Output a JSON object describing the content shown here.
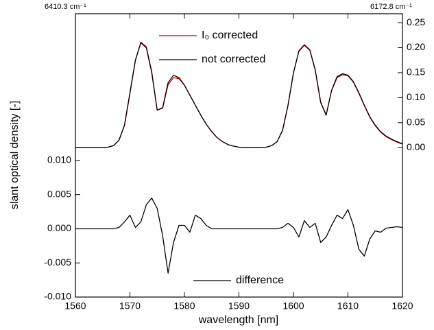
{
  "chart_data": {
    "type": "line",
    "x_label": "wavelength [nm]",
    "y_label": "slant optical density [-]",
    "annotations": [
      "6410.3 cm⁻¹",
      "6172.8 cm⁻¹"
    ],
    "x": [
      1560,
      1561,
      1562,
      1563,
      1564,
      1565,
      1566,
      1567,
      1568,
      1569,
      1570,
      1571,
      1572,
      1573,
      1574,
      1575,
      1576,
      1577,
      1578,
      1579,
      1580,
      1581,
      1582,
      1583,
      1584,
      1585,
      1586,
      1587,
      1588,
      1589,
      1590,
      1591,
      1592,
      1593,
      1594,
      1595,
      1596,
      1597,
      1598,
      1599,
      1600,
      1601,
      1602,
      1603,
      1604,
      1605,
      1606,
      1607,
      1608,
      1609,
      1610,
      1611,
      1612,
      1613,
      1614,
      1615,
      1616,
      1617,
      1618,
      1619,
      1620
    ],
    "series": [
      {
        "name": "I₀ corrected",
        "color": "#c00000",
        "axis": "y2",
        "values": [
          0,
          0,
          0,
          0,
          0,
          0,
          0.001,
          0.004,
          0.015,
          0.044,
          0.108,
          0.174,
          0.211,
          0.202,
          0.152,
          0.075,
          0.079,
          0.126,
          0.14,
          0.138,
          0.125,
          0.105,
          0.085,
          0.065,
          0.047,
          0.032,
          0.02,
          0.012,
          0.006,
          0.003,
          0.001,
          0,
          0,
          0,
          0,
          0.001,
          0.004,
          0.012,
          0.034,
          0.084,
          0.149,
          0.194,
          0.206,
          0.196,
          0.156,
          0.091,
          0.066,
          0.114,
          0.14,
          0.146,
          0.144,
          0.131,
          0.109,
          0.084,
          0.061,
          0.044,
          0.031,
          0.022,
          0.016,
          0.011,
          0.007
        ]
      },
      {
        "name": "not corrected",
        "color": "#000000",
        "axis": "y2",
        "values": [
          0,
          0,
          0,
          0,
          0,
          0,
          0.001,
          0.004,
          0.015,
          0.045,
          0.11,
          0.175,
          0.21,
          0.2,
          0.15,
          0.075,
          0.08,
          0.13,
          0.145,
          0.14,
          0.125,
          0.105,
          0.085,
          0.065,
          0.047,
          0.032,
          0.02,
          0.012,
          0.006,
          0.003,
          0.001,
          0,
          0,
          0,
          0,
          0.001,
          0.004,
          0.012,
          0.035,
          0.085,
          0.15,
          0.193,
          0.205,
          0.195,
          0.155,
          0.09,
          0.065,
          0.115,
          0.142,
          0.148,
          0.145,
          0.132,
          0.11,
          0.085,
          0.062,
          0.045,
          0.032,
          0.023,
          0.017,
          0.012,
          0.008
        ]
      },
      {
        "name": "difference",
        "color": "#000000",
        "values": [
          0,
          0,
          0,
          0,
          0,
          0,
          0,
          0,
          0.0002,
          0.001,
          0.002,
          0.0002,
          0.001,
          0.0035,
          0.0045,
          0.003,
          -0.001,
          -0.0065,
          -0.002,
          0.0005,
          0.0005,
          -0.0005,
          0.002,
          0.0015,
          0.0005,
          0,
          0,
          0,
          0,
          0,
          0,
          0,
          0,
          0,
          0,
          0,
          0,
          0,
          0.0002,
          0.0008,
          0.0002,
          -0.0012,
          0.0012,
          0.0002,
          0.0008,
          -0.002,
          -0.0012,
          0.0005,
          0.002,
          0.0015,
          0.0028,
          0.0005,
          -0.003,
          -0.004,
          -0.0015,
          -0.0003,
          -0.0005,
          0.0001,
          0.0002,
          0.0003,
          0.0002
        ]
      }
    ],
    "xlim": [
      1560,
      1620
    ],
    "xticks": [
      1560,
      1570,
      1580,
      1590,
      1600,
      1610,
      1620
    ],
    "ylim": [
      -0.01,
      0.0315
    ],
    "yticks": [
      {
        "value": -0.01,
        "label": "-0.010"
      },
      {
        "value": -0.005,
        "label": "-0.005"
      },
      {
        "value": 0,
        "label": "0.000"
      },
      {
        "value": 0.005,
        "label": "0.005"
      },
      {
        "value": 0.01,
        "label": "0.010"
      }
    ],
    "y2lim": [
      -0.299,
      0.268
    ],
    "y2ticks": [
      {
        "value": 0,
        "label": "0.00"
      },
      0.05,
      {
        "value": 0.1,
        "label": "0.10"
      },
      0.15,
      {
        "value": 0.2,
        "label": "0.20"
      },
      0.25
    ],
    "grid": false
  }
}
